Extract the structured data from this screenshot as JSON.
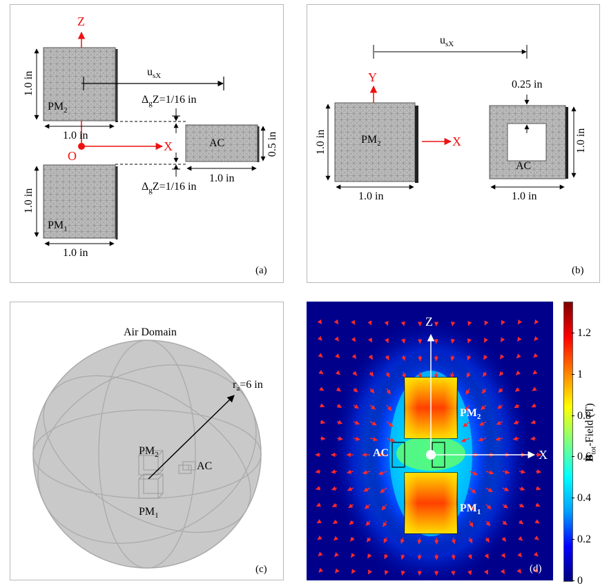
{
  "panel_a": {
    "tag": "(a)",
    "axis_z": "Z",
    "axis_x": "X",
    "origin": "O",
    "pm2": {
      "base": "PM",
      "sub": "2"
    },
    "pm1": {
      "base": "PM",
      "sub": "1"
    },
    "ac": "AC",
    "usx": {
      "base": "u",
      "sub": "sX"
    },
    "gap_top": {
      "delta": "Δ",
      "sub": "g",
      "rest": "Z=1/16 in"
    },
    "gap_bottom": {
      "delta": "Δ",
      "sub": "g",
      "rest": "Z=1/16 in"
    },
    "dim_pm2_height": "1.0 in",
    "dim_pm2_width": "1.0 in",
    "dim_pm1_height": "1.0 in",
    "dim_pm1_width": "1.0 in",
    "dim_ac_width": "1.0 in",
    "dim_ac_height": "0.5 in"
  },
  "panel_b": {
    "tag": "(b)",
    "axis_y": "Y",
    "axis_x": "X",
    "pm2": {
      "base": "PM",
      "sub": "2"
    },
    "ac": "AC",
    "usx": {
      "base": "u",
      "sub": "sX"
    },
    "dim_wall": "0.25 in",
    "dim_pm2_height": "1.0 in",
    "dim_pm2_width": "1.0 in",
    "dim_ac_height": "1.0 in",
    "dim_ac_width": "1.0 in"
  },
  "panel_c": {
    "tag": "(c)",
    "title": "Air Domain",
    "radius": {
      "base": "r",
      "sub": "a",
      "rest": "=6 in"
    },
    "pm2": {
      "base": "PM",
      "sub": "2"
    },
    "pm1": {
      "base": "PM",
      "sub": "1"
    },
    "ac": "AC"
  },
  "panel_d": {
    "tag": "(d)",
    "axis_z": "Z",
    "axis_x": "X",
    "ac": "AC",
    "pm2": {
      "base": "PM",
      "sub": "2"
    },
    "pm1": {
      "base": "PM",
      "sub": "1"
    }
  },
  "colorbar": {
    "label": {
      "base": "B",
      "sub": "tot",
      "rest": "-Field (T)"
    },
    "ticks": [
      "1.2",
      "1",
      "0.8",
      "0.6",
      "0.4",
      "0.2",
      "0"
    ],
    "range": [
      0,
      1.35
    ],
    "colormap": [
      "#00007f",
      "#0000ff",
      "#00a0ff",
      "#00ffff",
      "#7fff7f",
      "#ffff00",
      "#ff8000",
      "#ff0000",
      "#7f0000"
    ]
  }
}
